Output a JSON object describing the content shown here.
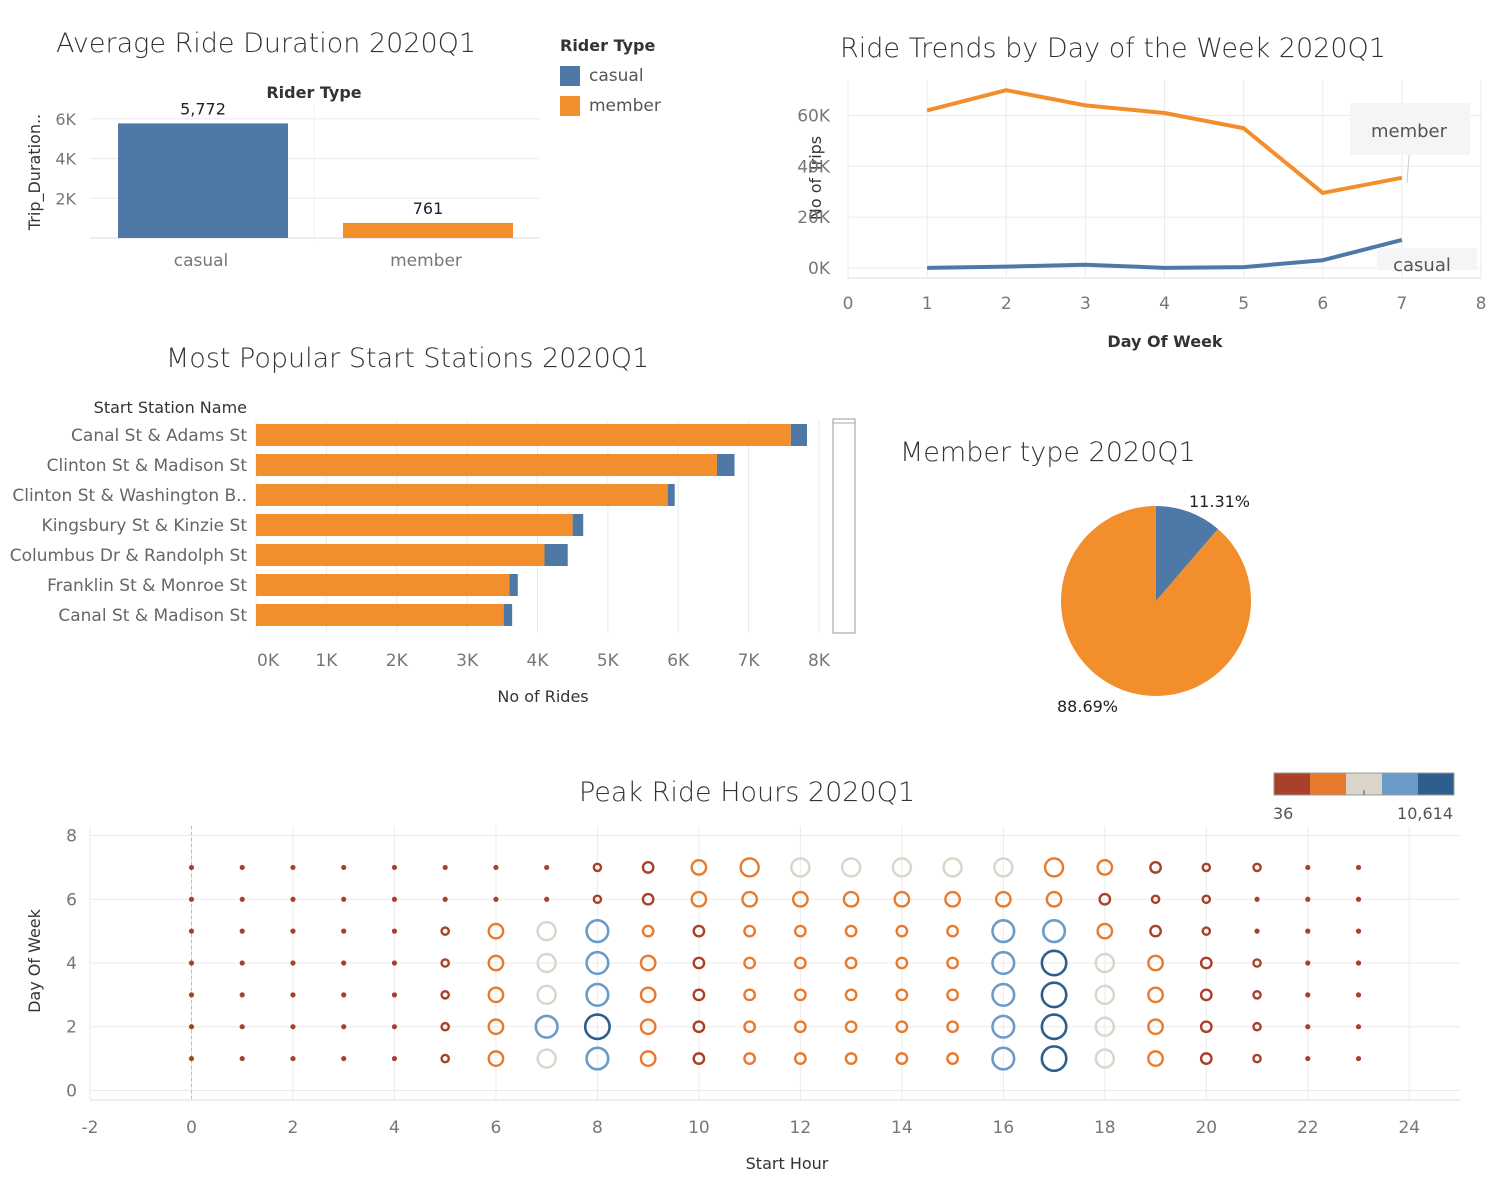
{
  "colors": {
    "casual": "#4e79a7",
    "member": "#f28e2b"
  },
  "legend": {
    "title": "Rider Type",
    "items": [
      {
        "label": "casual",
        "color": "#4e79a7"
      },
      {
        "label": "member",
        "color": "#f28e2b"
      }
    ]
  },
  "chart_data": [
    {
      "id": "avg-duration",
      "type": "bar",
      "title": "Average Ride Duration 2020Q1",
      "header": "Rider Type",
      "ylabel": "Trip_Duration..",
      "categories": [
        "casual",
        "member"
      ],
      "values": [
        5772,
        761
      ],
      "data_labels": [
        "5,772",
        "761"
      ],
      "colors": [
        "#4e79a7",
        "#f28e2b"
      ],
      "yticks": [
        "2K",
        "4K",
        "6K"
      ],
      "ylim": [
        0,
        6800
      ]
    },
    {
      "id": "day-trends",
      "type": "line",
      "title": "Ride Trends by Day of the Week 2020Q1",
      "xlabel": "Day Of Week",
      "ylabel": "No of Trips",
      "xlim": [
        0,
        8
      ],
      "ylim": [
        -4000,
        74000
      ],
      "xticks": [
        "0",
        "1",
        "2",
        "3",
        "4",
        "5",
        "6",
        "7",
        "8"
      ],
      "yticks": [
        "0K",
        "20K",
        "40K",
        "60K"
      ],
      "x": [
        1,
        2,
        3,
        4,
        5,
        6,
        7
      ],
      "series": [
        {
          "name": "member",
          "color": "#f28e2b",
          "values": [
            62000,
            70000,
            64000,
            61000,
            55000,
            29500,
            35500
          ]
        },
        {
          "name": "casual",
          "color": "#4e79a7",
          "values": [
            0,
            500,
            1200,
            0,
            300,
            3000,
            11000
          ]
        }
      ],
      "annotations": [
        "member",
        "casual"
      ]
    },
    {
      "id": "start-stations",
      "type": "bar",
      "orientation": "horizontal",
      "stacked": true,
      "title": "Most Popular Start Stations 2020Q1",
      "header": "Start Station Name",
      "xlabel": "No of Rides",
      "xlim": [
        0,
        8100
      ],
      "xticks": [
        "0K",
        "1K",
        "2K",
        "3K",
        "4K",
        "5K",
        "6K",
        "7K",
        "8K"
      ],
      "categories": [
        "Canal St & Adams St",
        "Clinton St & Madison St",
        "Clinton St & Washington B..",
        "Kingsbury St & Kinzie St",
        "Columbus Dr & Randolph St",
        "Franklin St & Monroe St",
        "Canal St & Madison St"
      ],
      "series": [
        {
          "name": "member",
          "color": "#f28e2b",
          "values": [
            7600,
            6550,
            5850,
            4500,
            4100,
            3600,
            3520
          ]
        },
        {
          "name": "casual",
          "color": "#4e79a7",
          "values": [
            230,
            250,
            100,
            150,
            330,
            120,
            120
          ]
        }
      ]
    },
    {
      "id": "member-type",
      "type": "pie",
      "title": "Member type 2020Q1",
      "slices": [
        {
          "name": "casual",
          "value": 11.31,
          "label": "11.31%",
          "color": "#4e79a7"
        },
        {
          "name": "member",
          "value": 88.69,
          "label": "88.69%",
          "color": "#f28e2b"
        }
      ]
    },
    {
      "id": "peak-hours",
      "type": "scatter",
      "title": "Peak Ride Hours 2020Q1",
      "xlabel": "Start Hour",
      "ylabel": "Day Of Week",
      "xlim": [
        -2,
        25
      ],
      "ylim": [
        -0.3,
        8.3
      ],
      "xticks": [
        "-2",
        "0",
        "2",
        "4",
        "6",
        "8",
        "10",
        "12",
        "14",
        "16",
        "18",
        "20",
        "22",
        "24"
      ],
      "yticks": [
        "0",
        "2",
        "4",
        "6",
        "8"
      ],
      "color_scale": {
        "min_label": "36",
        "max_label": "10,614",
        "colors": [
          "#a8402a",
          "#e87a2e",
          "#d9d5c9",
          "#6b9cc9",
          "#2e5e8e"
        ]
      },
      "hours": [
        0,
        1,
        2,
        3,
        4,
        5,
        6,
        7,
        8,
        9,
        10,
        11,
        12,
        13,
        14,
        15,
        16,
        17,
        18,
        19,
        20,
        21,
        22,
        23
      ],
      "days": [
        1,
        2,
        3,
        4,
        5,
        6,
        7
      ],
      "levels": [
        [
          0,
          0,
          0,
          0,
          0,
          0,
          1,
          2,
          3,
          1,
          0,
          1,
          1,
          1,
          1,
          1,
          3,
          4,
          2,
          1,
          0,
          0,
          0,
          0
        ],
        [
          0,
          0,
          0,
          0,
          0,
          0,
          1,
          3,
          4,
          1,
          0,
          1,
          1,
          1,
          1,
          1,
          3,
          4,
          2,
          1,
          0,
          0,
          0,
          0
        ],
        [
          0,
          0,
          0,
          0,
          0,
          0,
          1,
          2,
          3,
          1,
          0,
          1,
          1,
          1,
          1,
          1,
          3,
          4,
          2,
          1,
          0,
          0,
          0,
          0
        ],
        [
          0,
          0,
          0,
          0,
          0,
          0,
          1,
          2,
          3,
          1,
          0,
          1,
          1,
          1,
          1,
          1,
          3,
          4,
          2,
          1,
          0,
          0,
          0,
          0
        ],
        [
          0,
          0,
          0,
          0,
          0,
          0,
          1,
          2,
          3,
          1,
          0,
          1,
          1,
          1,
          1,
          1,
          3,
          3,
          1,
          0,
          0,
          0,
          0,
          0
        ],
        [
          0,
          0,
          0,
          0,
          0,
          0,
          0,
          0,
          0,
          0,
          1,
          1,
          1,
          1,
          1,
          1,
          1,
          1,
          0,
          0,
          0,
          0,
          0,
          0
        ],
        [
          0,
          0,
          0,
          0,
          0,
          0,
          0,
          0,
          0,
          0,
          1,
          1,
          2,
          2,
          2,
          2,
          2,
          1,
          1,
          0,
          0,
          0,
          0,
          0
        ]
      ],
      "sizes": [
        [
          1,
          1,
          1,
          1,
          1,
          2,
          4,
          5,
          6,
          4,
          3,
          3,
          3,
          3,
          3,
          3,
          6,
          7,
          5,
          4,
          3,
          2,
          1,
          1
        ],
        [
          1,
          1,
          1,
          1,
          1,
          2,
          4,
          6,
          7,
          4,
          3,
          3,
          3,
          3,
          3,
          3,
          6,
          7,
          5,
          4,
          3,
          2,
          1,
          1
        ],
        [
          1,
          1,
          1,
          1,
          1,
          2,
          4,
          5,
          6,
          4,
          3,
          3,
          3,
          3,
          3,
          3,
          6,
          7,
          5,
          4,
          3,
          2,
          1,
          1
        ],
        [
          1,
          1,
          1,
          1,
          1,
          2,
          4,
          5,
          6,
          4,
          3,
          3,
          3,
          3,
          3,
          3,
          6,
          7,
          5,
          4,
          3,
          2,
          1,
          1
        ],
        [
          1,
          1,
          1,
          1,
          1,
          2,
          4,
          5,
          6,
          3,
          3,
          3,
          3,
          3,
          3,
          3,
          6,
          6,
          4,
          3,
          2,
          1,
          1,
          1
        ],
        [
          1,
          1,
          1,
          1,
          1,
          1,
          1,
          1,
          2,
          3,
          4,
          4,
          4,
          4,
          4,
          4,
          4,
          4,
          3,
          2,
          2,
          1,
          1,
          1
        ],
        [
          1,
          1,
          1,
          1,
          1,
          1,
          1,
          1,
          2,
          3,
          4,
          5,
          5,
          5,
          5,
          5,
          5,
          5,
          4,
          3,
          2,
          2,
          1,
          1
        ]
      ]
    }
  ]
}
